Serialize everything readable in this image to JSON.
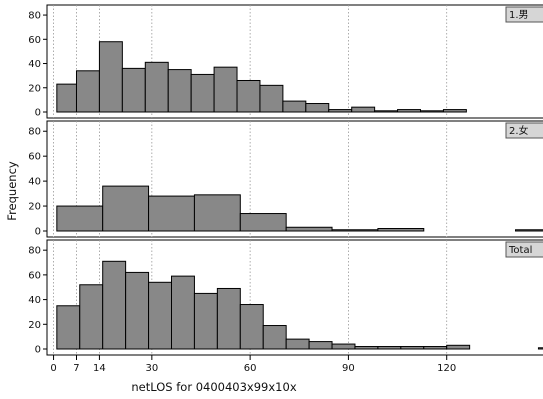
{
  "chart_data": {
    "type": "bar",
    "subtype": "paneled-histogram",
    "xlabel": "netLOS for 0400403x99x10x",
    "ylabel": "Frequency",
    "xticks": [
      0,
      7,
      14,
      30,
      60,
      90,
      120
    ],
    "xlim": [
      -2,
      150
    ],
    "ylim": [
      0,
      85
    ],
    "yticks": [
      0,
      20,
      40,
      60,
      80
    ],
    "vlines": [
      0,
      7,
      14,
      30,
      60,
      90,
      120
    ],
    "bar_color": "#888888",
    "panels": [
      {
        "label": "1.男",
        "bins": [
          {
            "x0": 1,
            "x1": 7,
            "y": 23
          },
          {
            "x0": 7,
            "x1": 14,
            "y": 34
          },
          {
            "x0": 14,
            "x1": 21,
            "y": 58
          },
          {
            "x0": 21,
            "x1": 28,
            "y": 36
          },
          {
            "x0": 28,
            "x1": 35,
            "y": 41
          },
          {
            "x0": 35,
            "x1": 42,
            "y": 35
          },
          {
            "x0": 42,
            "x1": 49,
            "y": 31
          },
          {
            "x0": 49,
            "x1": 56,
            "y": 37
          },
          {
            "x0": 56,
            "x1": 63,
            "y": 26
          },
          {
            "x0": 63,
            "x1": 70,
            "y": 22
          },
          {
            "x0": 70,
            "x1": 77,
            "y": 9
          },
          {
            "x0": 77,
            "x1": 84,
            "y": 7
          },
          {
            "x0": 84,
            "x1": 91,
            "y": 2
          },
          {
            "x0": 91,
            "x1": 98,
            "y": 4
          },
          {
            "x0": 98,
            "x1": 105,
            "y": 1
          },
          {
            "x0": 105,
            "x1": 112,
            "y": 2
          },
          {
            "x0": 112,
            "x1": 119,
            "y": 1
          },
          {
            "x0": 119,
            "x1": 126,
            "y": 2
          }
        ]
      },
      {
        "label": "2.女",
        "bins": [
          {
            "x0": 1,
            "x1": 15,
            "y": 20
          },
          {
            "x0": 15,
            "x1": 29,
            "y": 36
          },
          {
            "x0": 29,
            "x1": 43,
            "y": 28
          },
          {
            "x0": 43,
            "x1": 57,
            "y": 29
          },
          {
            "x0": 57,
            "x1": 71,
            "y": 14
          },
          {
            "x0": 71,
            "x1": 85,
            "y": 3
          },
          {
            "x0": 85,
            "x1": 99,
            "y": 1
          },
          {
            "x0": 99,
            "x1": 113,
            "y": 2
          },
          {
            "x0": 141,
            "x1": 155,
            "y": 1
          }
        ]
      },
      {
        "label": "Total",
        "bins": [
          {
            "x0": 1,
            "x1": 8,
            "y": 35
          },
          {
            "x0": 8,
            "x1": 15,
            "y": 52
          },
          {
            "x0": 15,
            "x1": 22,
            "y": 71
          },
          {
            "x0": 22,
            "x1": 29,
            "y": 62
          },
          {
            "x0": 29,
            "x1": 36,
            "y": 54
          },
          {
            "x0": 36,
            "x1": 43,
            "y": 59
          },
          {
            "x0": 43,
            "x1": 50,
            "y": 45
          },
          {
            "x0": 50,
            "x1": 57,
            "y": 49
          },
          {
            "x0": 57,
            "x1": 64,
            "y": 36
          },
          {
            "x0": 64,
            "x1": 71,
            "y": 19
          },
          {
            "x0": 71,
            "x1": 78,
            "y": 8
          },
          {
            "x0": 78,
            "x1": 85,
            "y": 6
          },
          {
            "x0": 85,
            "x1": 92,
            "y": 4
          },
          {
            "x0": 92,
            "x1": 99,
            "y": 2
          },
          {
            "x0": 99,
            "x1": 106,
            "y": 2
          },
          {
            "x0": 106,
            "x1": 113,
            "y": 2
          },
          {
            "x0": 113,
            "x1": 120,
            "y": 2
          },
          {
            "x0": 120,
            "x1": 127,
            "y": 3
          },
          {
            "x0": 148,
            "x1": 155,
            "y": 1
          }
        ]
      }
    ]
  }
}
